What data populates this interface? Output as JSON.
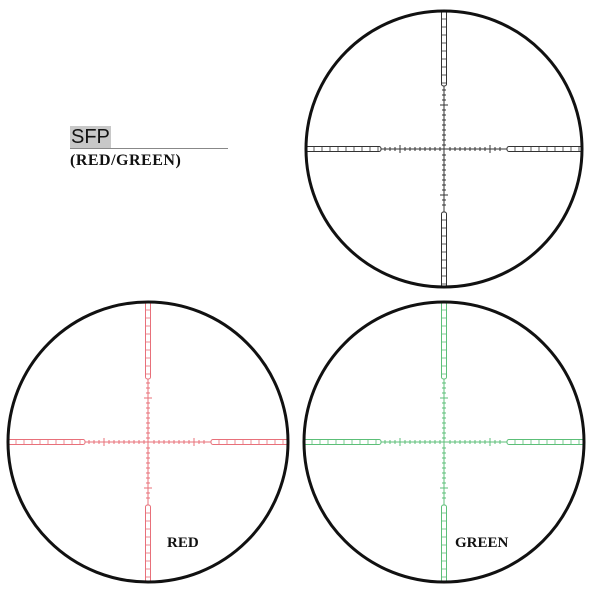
{
  "header": {
    "title": "SFP",
    "subtitle": "(RED/GREEN)"
  },
  "reticles": [
    {
      "id": "black",
      "label": "",
      "color": "#333333"
    },
    {
      "id": "red",
      "label": "RED",
      "color": "#e8707a"
    },
    {
      "id": "green",
      "label": "GREEN",
      "color": "#5cbf78"
    }
  ],
  "colors": {
    "ring": "#111111"
  }
}
